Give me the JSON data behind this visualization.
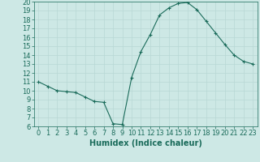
{
  "x": [
    0,
    1,
    2,
    3,
    4,
    5,
    6,
    7,
    8,
    9,
    10,
    11,
    12,
    13,
    14,
    15,
    16,
    17,
    18,
    19,
    20,
    21,
    22,
    23
  ],
  "y": [
    11,
    10.5,
    10,
    9.9,
    9.8,
    9.3,
    8.8,
    8.7,
    6.3,
    6.2,
    11.5,
    14.4,
    16.3,
    18.5,
    19.3,
    19.8,
    19.9,
    19.1,
    17.8,
    16.5,
    15.2,
    14.0,
    13.3,
    13.0
  ],
  "line_color": "#1a6b5a",
  "marker": "+",
  "marker_size": 3,
  "bg_color": "#cde8e5",
  "grid_major_color": "#b8d8d5",
  "grid_minor_color": "#d8ecea",
  "tick_color": "#1a6b5a",
  "xlabel": "Humidex (Indice chaleur)",
  "xlim": [
    -0.5,
    23.5
  ],
  "ylim": [
    6,
    20
  ],
  "yticks": [
    6,
    7,
    8,
    9,
    10,
    11,
    12,
    13,
    14,
    15,
    16,
    17,
    18,
    19,
    20
  ],
  "xticks": [
    0,
    1,
    2,
    3,
    4,
    5,
    6,
    7,
    8,
    9,
    10,
    11,
    12,
    13,
    14,
    15,
    16,
    17,
    18,
    19,
    20,
    21,
    22,
    23
  ],
  "xlabel_fontsize": 7,
  "tick_fontsize": 6
}
